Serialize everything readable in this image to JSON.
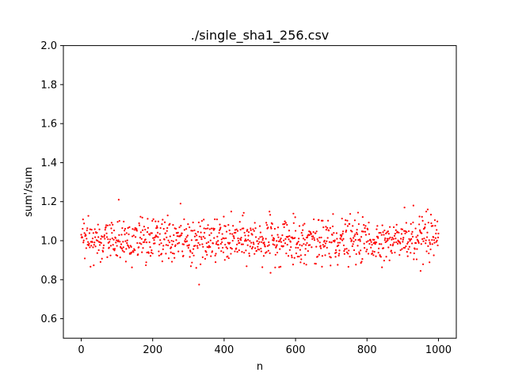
{
  "chart_data": {
    "type": "scatter",
    "title": "./single_sha1_256.csv",
    "xlabel": "n",
    "ylabel": "sum'/sum",
    "xlim": [
      -50,
      1050
    ],
    "ylim": [
      0.5,
      2.0
    ],
    "xticks": [
      0,
      200,
      400,
      600,
      800,
      1000
    ],
    "yticks": [
      0.6,
      0.8,
      1.0,
      1.2,
      1.4,
      1.6,
      1.8,
      2.0
    ],
    "xtick_labels": [
      "0",
      "200",
      "400",
      "600",
      "800",
      "1000"
    ],
    "ytick_labels": [
      "0.6",
      "0.8",
      "1.0",
      "1.2",
      "1.4",
      "1.6",
      "1.8",
      "2.0"
    ],
    "grid": false,
    "marker_color": "#ff0000",
    "series": [
      {
        "points": "n = 0..1000 (one point per n), values scattered around 1.0 with spread roughly 0.85–1.15",
        "x_start": 0,
        "x_end": 1000,
        "mean": 1.0,
        "std": 0.055,
        "outliers": [
          [
            105,
            1.21
          ],
          [
            278,
            1.19
          ],
          [
            330,
            0.775
          ],
          [
            530,
            0.835
          ],
          [
            905,
            1.17
          ],
          [
            930,
            1.18
          ],
          [
            970,
            1.16
          ],
          [
            950,
            0.845
          ]
        ]
      }
    ]
  }
}
